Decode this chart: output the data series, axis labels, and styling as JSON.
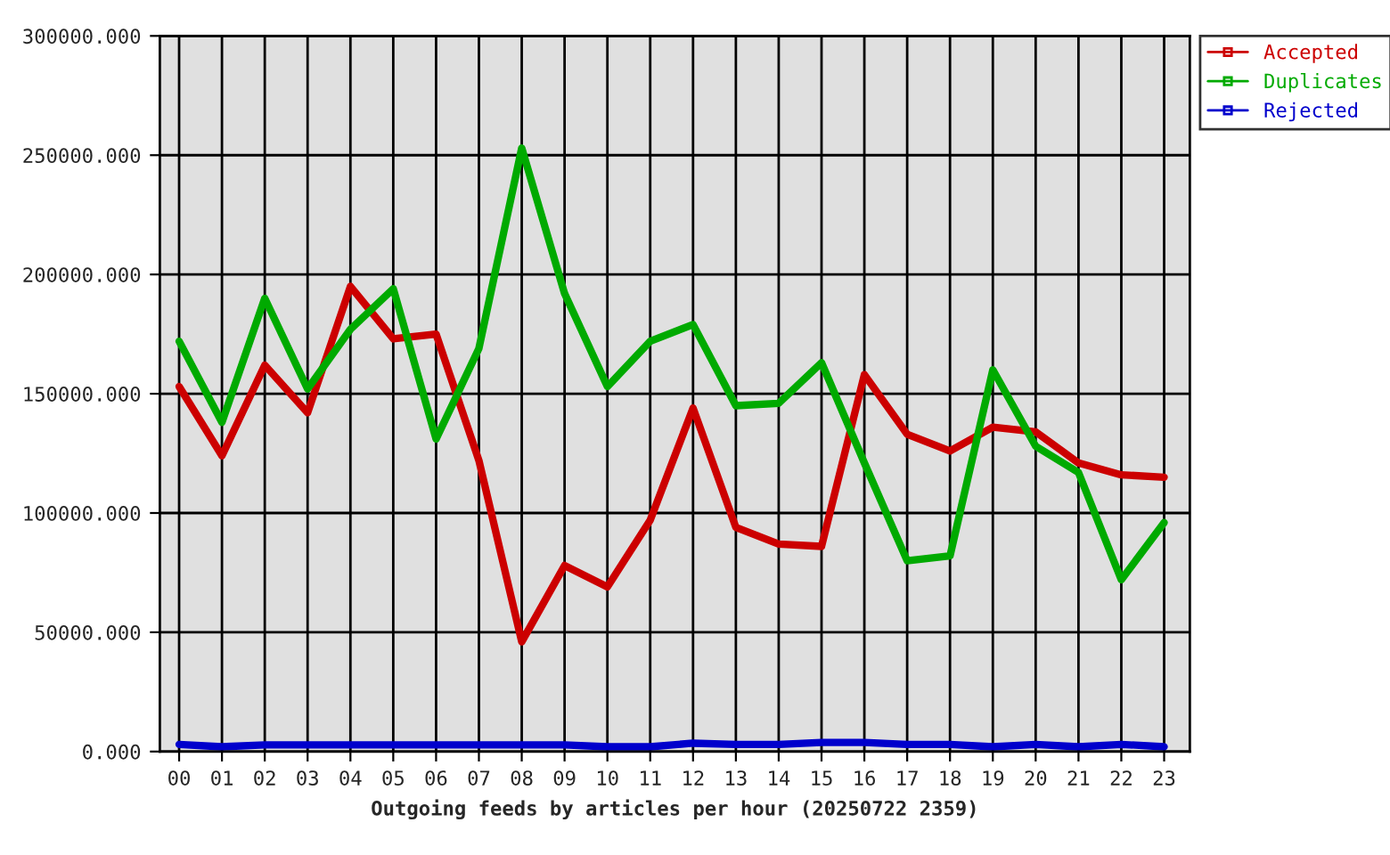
{
  "chart_data": {
    "type": "line",
    "xlabel": "Outgoing feeds by articles per hour (20250722 2359)",
    "categories": [
      "00",
      "01",
      "02",
      "03",
      "04",
      "05",
      "06",
      "07",
      "08",
      "09",
      "10",
      "11",
      "12",
      "13",
      "14",
      "15",
      "16",
      "17",
      "18",
      "19",
      "20",
      "21",
      "22",
      "23"
    ],
    "series": [
      {
        "name": "Accepted",
        "color": "#cc0000",
        "values": [
          153000,
          124000,
          162000,
          142000,
          195000,
          173000,
          175000,
          122000,
          46000,
          78000,
          69000,
          97000,
          144000,
          94000,
          87000,
          86000,
          158000,
          133000,
          126000,
          136000,
          134000,
          121000,
          116000,
          115000
        ]
      },
      {
        "name": "Duplicates",
        "color": "#00aa00",
        "values": [
          172000,
          138000,
          190000,
          152000,
          177000,
          194000,
          131000,
          169000,
          253000,
          192000,
          153000,
          172000,
          179000,
          145000,
          146000,
          163000,
          121000,
          80000,
          82000,
          160000,
          128000,
          117000,
          72000,
          96000
        ]
      },
      {
        "name": "Rejected",
        "color": "#0000cc",
        "values": [
          3000,
          2000,
          2800,
          2800,
          2800,
          2800,
          2800,
          2800,
          2800,
          2800,
          2000,
          2000,
          3500,
          3000,
          3000,
          3800,
          3800,
          3000,
          3000,
          2000,
          3000,
          2000,
          3000,
          2000
        ]
      }
    ],
    "ylim": [
      0,
      300000
    ],
    "yticks": [
      {
        "value": 0,
        "label": "0.000"
      },
      {
        "value": 50000,
        "label": "50000.000"
      },
      {
        "value": 100000,
        "label": "100000.000"
      },
      {
        "value": 150000,
        "label": "150000.000"
      },
      {
        "value": 200000,
        "label": "200000.000"
      },
      {
        "value": 250000,
        "label": "250000.000"
      },
      {
        "value": 300000,
        "label": "300000.000"
      }
    ],
    "grid": true,
    "legend": "top right"
  }
}
